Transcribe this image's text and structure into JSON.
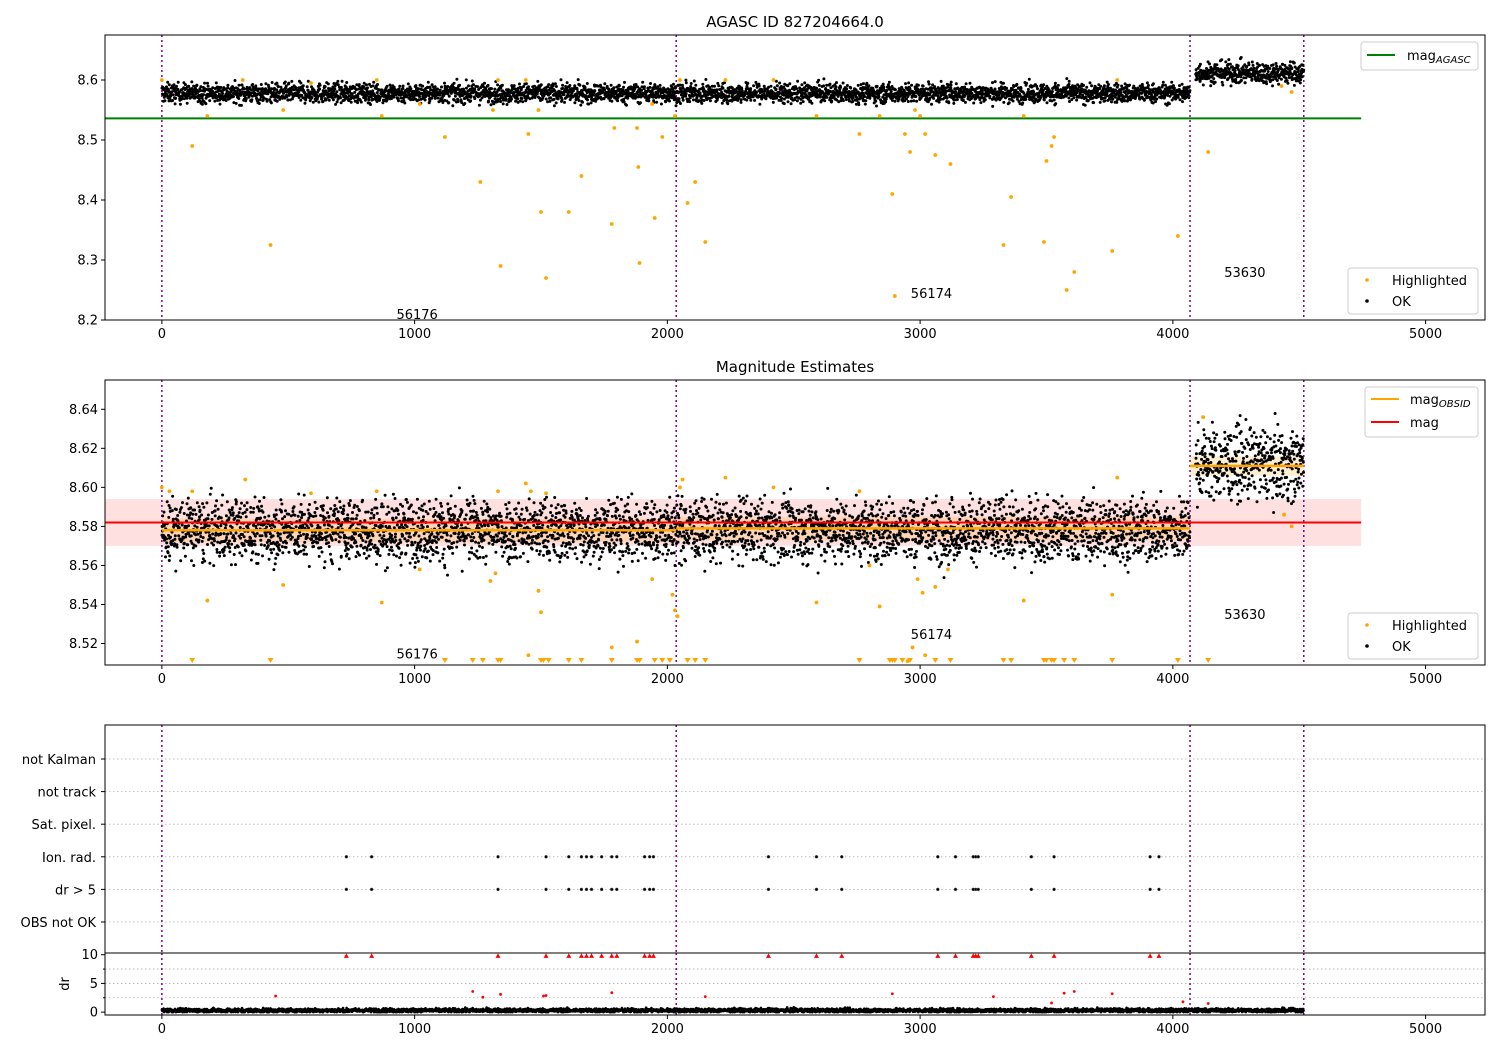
{
  "chart_data": [
    {
      "type": "scatter",
      "title": "AGASC ID 827204664.0",
      "xlabel": "",
      "ylabel": "",
      "xlim": [
        -225,
        5235
      ],
      "ylim": [
        8.2,
        8.675
      ],
      "x_ticks": [
        "0",
        "1000",
        "2000",
        "3000",
        "4000",
        "5000"
      ],
      "y_ticks": [
        "8.2",
        "8.3",
        "8.4",
        "8.5",
        "8.6"
      ],
      "obsid_boundaries": [
        0,
        2035,
        4068,
        4518
      ],
      "obsid_labels": [
        {
          "text": "56176",
          "x": 1010,
          "y": 8.21
        },
        {
          "text": "56174",
          "x": 3045,
          "y": 8.245
        },
        {
          "text": "53630",
          "x": 4285,
          "y": 8.28
        }
      ],
      "ok_series": [
        {
          "x_start": 0,
          "x_end": 4068,
          "level": 8.578,
          "spread": 0.008
        },
        {
          "x_start": 4090,
          "x_end": 4518,
          "level": 8.612,
          "spread": 0.009
        }
      ],
      "agasc_mag": 8.536,
      "agasc_line_x": [
        -225,
        4745
      ],
      "highlighted": [
        [
          0,
          8.6
        ],
        [
          120,
          8.49
        ],
        [
          180,
          8.54
        ],
        [
          320,
          8.6
        ],
        [
          430,
          8.325
        ],
        [
          480,
          8.55
        ],
        [
          590,
          8.595
        ],
        [
          850,
          8.6
        ],
        [
          870,
          8.54
        ],
        [
          1020,
          8.56
        ],
        [
          1120,
          8.505
        ],
        [
          1260,
          8.43
        ],
        [
          1310,
          8.55
        ],
        [
          1340,
          8.29
        ],
        [
          1330,
          8.6
        ],
        [
          1440,
          8.6
        ],
        [
          1450,
          8.51
        ],
        [
          1490,
          8.55
        ],
        [
          1500,
          8.38
        ],
        [
          1520,
          8.27
        ],
        [
          1610,
          8.38
        ],
        [
          1660,
          8.44
        ],
        [
          1780,
          8.36
        ],
        [
          1790,
          8.52
        ],
        [
          1880,
          8.52
        ],
        [
          1885,
          8.455
        ],
        [
          1890,
          8.295
        ],
        [
          1940,
          8.56
        ],
        [
          1950,
          8.37
        ],
        [
          1980,
          8.505
        ],
        [
          2030,
          8.54
        ],
        [
          2050,
          8.6
        ],
        [
          2080,
          8.395
        ],
        [
          2110,
          8.43
        ],
        [
          2150,
          8.33
        ],
        [
          2230,
          8.6
        ],
        [
          2420,
          8.6
        ],
        [
          2590,
          8.54
        ],
        [
          2760,
          8.51
        ],
        [
          2840,
          8.54
        ],
        [
          2890,
          8.41
        ],
        [
          2900,
          8.24
        ],
        [
          2940,
          8.51
        ],
        [
          2960,
          8.48
        ],
        [
          2980,
          8.55
        ],
        [
          3000,
          8.54
        ],
        [
          3020,
          8.51
        ],
        [
          3060,
          8.475
        ],
        [
          3120,
          8.46
        ],
        [
          3330,
          8.325
        ],
        [
          3360,
          8.405
        ],
        [
          3410,
          8.54
        ],
        [
          3490,
          8.33
        ],
        [
          3500,
          8.465
        ],
        [
          3520,
          8.49
        ],
        [
          3530,
          8.505
        ],
        [
          3580,
          8.25
        ],
        [
          3610,
          8.28
        ],
        [
          3760,
          8.315
        ],
        [
          3780,
          8.6
        ],
        [
          4020,
          8.34
        ],
        [
          4140,
          8.48
        ],
        [
          4430,
          8.59
        ],
        [
          4470,
          8.58
        ]
      ],
      "legend": {
        "position": "top-right",
        "line_entries": [
          {
            "base": "mag",
            "sub": "AGASC",
            "color": "#008000"
          }
        ],
        "scatter_position": "bottom-right",
        "scatter_entries": [
          {
            "label": "Highlighted",
            "color": "#ffa500"
          },
          {
            "label": "OK",
            "color": "#000000"
          }
        ]
      },
      "grid": false
    },
    {
      "type": "scatter",
      "title": "Magnitude Estimates",
      "xlabel": "",
      "ylabel": "",
      "xlim": [
        -225,
        5235
      ],
      "ylim": [
        8.509,
        8.655
      ],
      "x_ticks": [
        "0",
        "1000",
        "2000",
        "3000",
        "4000",
        "5000"
      ],
      "y_ticks": [
        "8.52",
        "8.54",
        "8.56",
        "8.58",
        "8.60",
        "8.62",
        "8.64"
      ],
      "obsid_boundaries": [
        0,
        2035,
        4068,
        4518
      ],
      "obsid_labels": [
        {
          "text": "56176",
          "x": 1010,
          "y": 8.515
        },
        {
          "text": "56174",
          "x": 3045,
          "y": 8.525
        },
        {
          "text": "53630",
          "x": 4285,
          "y": 8.535
        }
      ],
      "ok_series": [
        {
          "x_start": 0,
          "x_end": 4068,
          "level": 8.578,
          "spread": 0.008
        },
        {
          "x_start": 4090,
          "x_end": 4518,
          "level": 8.612,
          "spread": 0.009
        }
      ],
      "mag": 8.582,
      "mag_band": [
        8.57,
        8.594
      ],
      "mag_line_x": [
        -225,
        4745
      ],
      "mag_obsid": [
        {
          "x_start": 0,
          "x_end": 2035,
          "value": 8.578,
          "band": [
            8.572,
            8.584
          ]
        },
        {
          "x_start": 2035,
          "x_end": 4068,
          "value": 8.579,
          "band": [
            8.573,
            8.585
          ]
        },
        {
          "x_start": 4068,
          "x_end": 4518,
          "value": 8.611,
          "band": [
            8.606,
            8.616
          ]
        }
      ],
      "highlighted": [
        [
          0,
          8.6
        ],
        [
          30,
          8.598
        ],
        [
          120,
          8.598
        ],
        [
          180,
          8.542
        ],
        [
          330,
          8.604
        ],
        [
          480,
          8.55
        ],
        [
          590,
          8.597
        ],
        [
          850,
          8.598
        ],
        [
          870,
          8.541
        ],
        [
          1020,
          8.558
        ],
        [
          1300,
          8.552
        ],
        [
          1320,
          8.556
        ],
        [
          1330,
          8.598
        ],
        [
          1440,
          8.602
        ],
        [
          1450,
          8.514
        ],
        [
          1460,
          8.598
        ],
        [
          1490,
          8.547
        ],
        [
          1500,
          8.536
        ],
        [
          1520,
          8.597
        ],
        [
          1780,
          8.518
        ],
        [
          1880,
          8.521
        ],
        [
          1940,
          8.553
        ],
        [
          2020,
          8.545
        ],
        [
          2030,
          8.537
        ],
        [
          2040,
          8.534
        ],
        [
          2050,
          8.6
        ],
        [
          2060,
          8.604
        ],
        [
          2230,
          8.605
        ],
        [
          2420,
          8.6
        ],
        [
          2590,
          8.541
        ],
        [
          2760,
          8.598
        ],
        [
          2800,
          8.56
        ],
        [
          2840,
          8.539
        ],
        [
          2950,
          8.511
        ],
        [
          2970,
          8.518
        ],
        [
          2990,
          8.553
        ],
        [
          3010,
          8.546
        ],
        [
          3020,
          8.514
        ],
        [
          3060,
          8.549
        ],
        [
          3110,
          8.558
        ],
        [
          3410,
          8.542
        ],
        [
          3760,
          8.545
        ],
        [
          3780,
          8.605
        ],
        [
          4120,
          8.636
        ],
        [
          4440,
          8.586
        ],
        [
          4470,
          8.58
        ]
      ],
      "below_range_markers": [
        120,
        430,
        1120,
        1230,
        1270,
        1330,
        1340,
        1500,
        1510,
        1530,
        1610,
        1660,
        1780,
        1880,
        1890,
        1950,
        1980,
        2010,
        2080,
        2110,
        2150,
        2760,
        2880,
        2890,
        2900,
        2930,
        2960,
        3060,
        3120,
        3330,
        3360,
        3490,
        3500,
        3520,
        3530,
        3570,
        3610,
        3760,
        4020,
        4140
      ],
      "legend": {
        "position": "top-right",
        "line_entries": [
          {
            "base": "mag",
            "sub": "OBSID",
            "color": "#ffa500"
          },
          {
            "base": "mag",
            "sub": "",
            "color": "#ff0000"
          }
        ],
        "scatter_position": "bottom-right",
        "scatter_entries": [
          {
            "label": "Highlighted",
            "color": "#ffa500"
          },
          {
            "label": "OK",
            "color": "#000000"
          }
        ]
      },
      "grid": false
    },
    {
      "type": "scatter",
      "title": "",
      "xlabel": "",
      "ylabel": "",
      "xlim": [
        -225,
        5235
      ],
      "categories": [
        "not Kalman",
        "not track",
        "Sat. pixel.",
        "Ion. rad.",
        "dr > 5",
        "OBS not OK"
      ],
      "obsid_boundaries": [
        0,
        2035,
        4068,
        4518
      ],
      "flag_x": [
        730,
        830,
        1330,
        1520,
        1610,
        1660,
        1680,
        1700,
        1740,
        1780,
        1800,
        1910,
        1930,
        1945,
        2400,
        2590,
        2690,
        3070,
        3140,
        3210,
        3220,
        3230,
        3440,
        3530,
        3910,
        3945
      ],
      "flags": {
        "Ion. rad.": true,
        "dr > 5": true
      },
      "grid": true
    },
    {
      "type": "scatter",
      "title": "",
      "xlabel": "",
      "ylabel": "dr",
      "xlim": [
        -225,
        5235
      ],
      "ylim": [
        -0.5,
        10.3
      ],
      "y_ticks": [
        "0",
        "5",
        "10"
      ],
      "obsid_boundaries": [
        0,
        2035,
        4068,
        4518
      ],
      "ok_baseline": {
        "x_start": 0,
        "x_end": 4518,
        "level": 0.3
      },
      "outliers": [
        [
          450,
          2.8
        ],
        [
          1230,
          3.6
        ],
        [
          1270,
          2.6
        ],
        [
          1340,
          3.1
        ],
        [
          1510,
          2.8
        ],
        [
          1520,
          2.9
        ],
        [
          1780,
          3.4
        ],
        [
          2150,
          2.7
        ],
        [
          2890,
          3.2
        ],
        [
          3290,
          2.7
        ],
        [
          3520,
          1.6
        ],
        [
          3570,
          3.3
        ],
        [
          3610,
          3.6
        ],
        [
          3760,
          3.2
        ],
        [
          4040,
          1.8
        ],
        [
          4140,
          1.5
        ]
      ],
      "flagged_x": [
        730,
        830,
        1330,
        1520,
        1610,
        1660,
        1680,
        1700,
        1740,
        1780,
        1800,
        1910,
        1930,
        1945,
        2400,
        2590,
        2690,
        3070,
        3140,
        3210,
        3220,
        3230,
        3440,
        3530,
        3910,
        3945
      ],
      "flagged_value": 9.8,
      "grid": true
    }
  ]
}
